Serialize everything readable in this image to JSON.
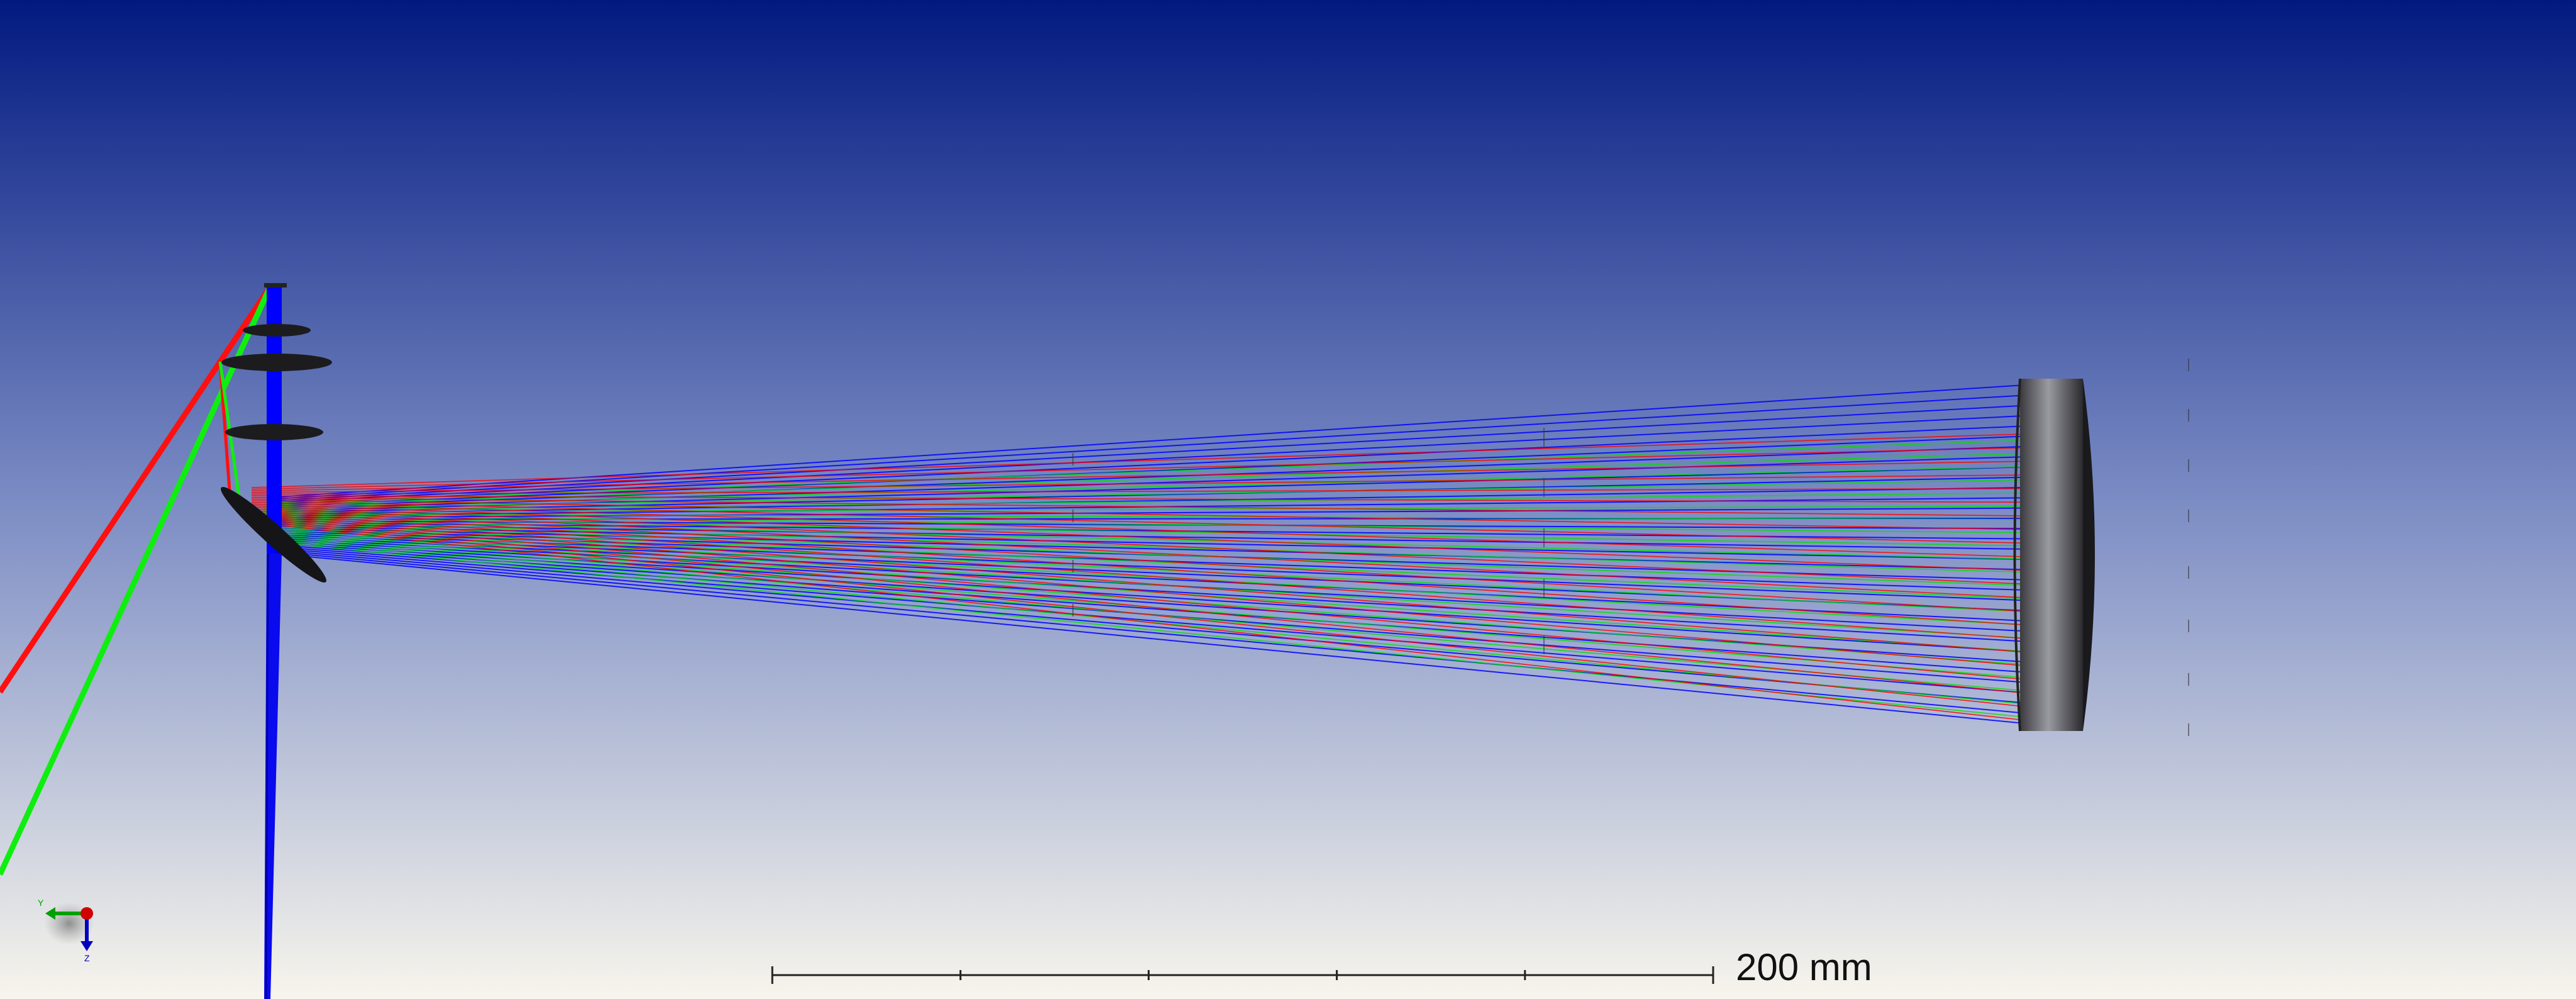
{
  "viewer": {
    "background_top": "#021a80",
    "background_mid": "#7b8cc4",
    "background_bottom": "#f7f5ec"
  },
  "scale_bar": {
    "label": "200 mm",
    "length_mm": 200,
    "subdivisions": 5
  },
  "ray_colors": {
    "field_1": "#0000ff",
    "field_2": "#00e000",
    "field_3": "#ff0000"
  },
  "components": {
    "primary_mirror": "primary-mirror",
    "fold_mirror": "fold-mirror",
    "lenses": [
      "lens-1",
      "lens-2",
      "lens-3"
    ],
    "image_plane": "image-plane"
  },
  "triad": {
    "axes": [
      "y",
      "z"
    ],
    "colors": {
      "y": "#00a000",
      "z": "#0000c0",
      "x": "#d00000"
    }
  }
}
